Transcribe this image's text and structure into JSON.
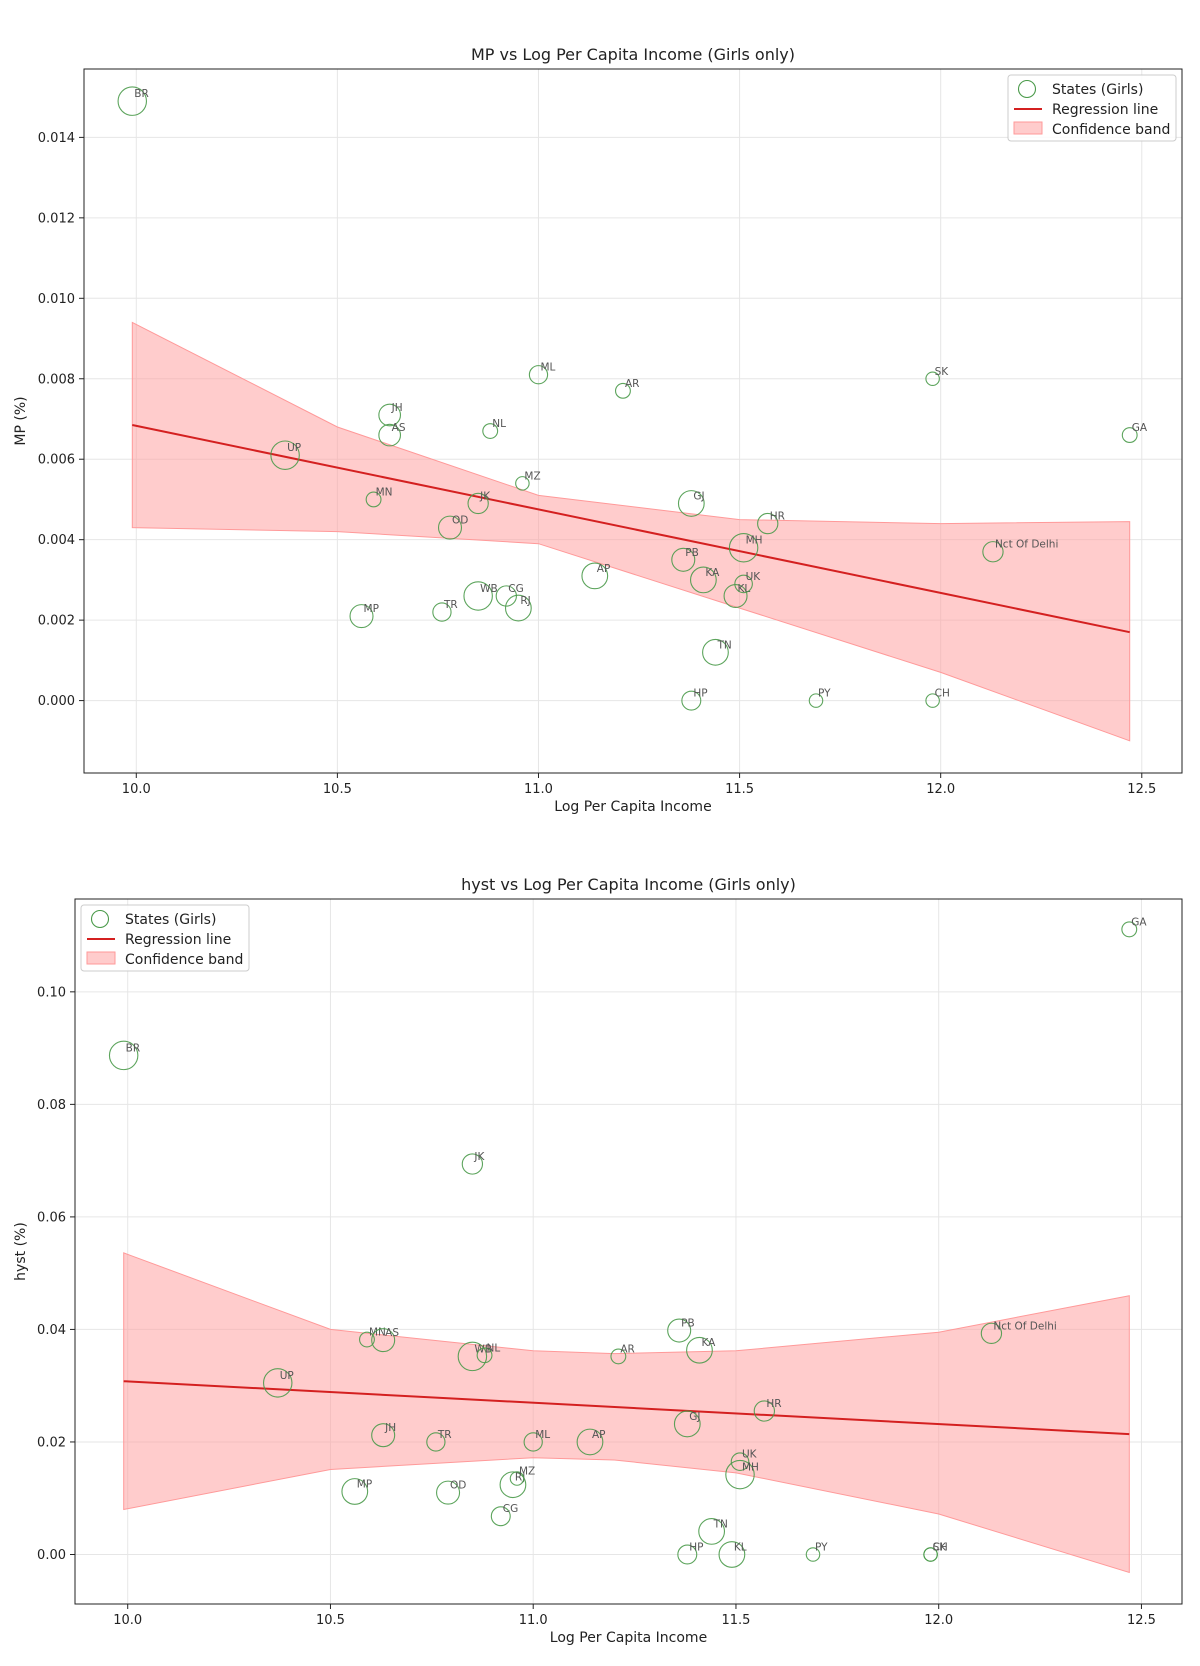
{
  "chart_data": [
    {
      "type": "scatter",
      "title": "MP vs Log Per Capita Income (Girls only)",
      "xlabel": "Log Per Capita Income",
      "ylabel": "MP (%)",
      "xlim": [
        9.87,
        12.6
      ],
      "ylim": [
        -0.0018,
        0.0157
      ],
      "xticks": [
        10.0,
        10.5,
        11.0,
        11.5,
        12.0,
        12.5
      ],
      "xtick_labels": [
        "10.0",
        "10.5",
        "11.0",
        "11.5",
        "12.0",
        "12.5"
      ],
      "yticks": [
        0.0,
        0.002,
        0.004,
        0.006,
        0.008,
        0.01,
        0.012,
        0.014
      ],
      "ytick_labels": [
        "0.000",
        "0.002",
        "0.004",
        "0.006",
        "0.008",
        "0.010",
        "0.012",
        "0.014"
      ],
      "grid": true,
      "legend_position": "top-right",
      "legend": [
        "States (Girls)",
        "Regression line",
        "Confidence band"
      ],
      "colors": {
        "points": "#4a9a4a",
        "line": "#d42020",
        "band": "#ff9999"
      },
      "regression": {
        "x": [
          9.99,
          12.47
        ],
        "y": [
          0.00685,
          0.0017
        ]
      },
      "band": {
        "x": [
          9.99,
          10.5,
          11.0,
          11.5,
          12.0,
          12.47
        ],
        "upper": [
          0.0094,
          0.0068,
          0.0051,
          0.0045,
          0.0044,
          0.00445
        ],
        "lower": [
          0.0043,
          0.0042,
          0.0039,
          0.0023,
          0.0007,
          -0.001
        ]
      },
      "points": [
        {
          "label": "BR",
          "x": 9.99,
          "y": 0.0149,
          "size": 3
        },
        {
          "label": "UP",
          "x": 10.37,
          "y": 0.0061,
          "size": 3
        },
        {
          "label": "MP",
          "x": 10.56,
          "y": 0.0021,
          "size": 2.2
        },
        {
          "label": "MN",
          "x": 10.59,
          "y": 0.005,
          "size": 1
        },
        {
          "label": "JH",
          "x": 10.63,
          "y": 0.0071,
          "size": 2
        },
        {
          "label": "AS",
          "x": 10.63,
          "y": 0.0066,
          "size": 2
        },
        {
          "label": "TR",
          "x": 10.76,
          "y": 0.0022,
          "size": 1.5
        },
        {
          "label": "OD",
          "x": 10.78,
          "y": 0.0043,
          "size": 2.2
        },
        {
          "label": "WB",
          "x": 10.85,
          "y": 0.0026,
          "size": 3
        },
        {
          "label": "JK",
          "x": 10.85,
          "y": 0.0049,
          "size": 1.8
        },
        {
          "label": "NL",
          "x": 10.88,
          "y": 0.0067,
          "size": 1
        },
        {
          "label": "CG",
          "x": 10.92,
          "y": 0.0026,
          "size": 1.8
        },
        {
          "label": "RJ",
          "x": 10.95,
          "y": 0.0023,
          "size": 2.6
        },
        {
          "label": "MZ",
          "x": 10.96,
          "y": 0.0054,
          "size": 0.8
        },
        {
          "label": "ML",
          "x": 11.0,
          "y": 0.0081,
          "size": 1.5
        },
        {
          "label": "AP",
          "x": 11.14,
          "y": 0.0031,
          "size": 2.6
        },
        {
          "label": "AR",
          "x": 11.21,
          "y": 0.0077,
          "size": 1
        },
        {
          "label": "PB",
          "x": 11.36,
          "y": 0.0035,
          "size": 2.2
        },
        {
          "label": "GJ",
          "x": 11.38,
          "y": 0.0049,
          "size": 2.6
        },
        {
          "label": "HP",
          "x": 11.38,
          "y": 0.0,
          "size": 1.6
        },
        {
          "label": "KA",
          "x": 11.41,
          "y": 0.003,
          "size": 2.6
        },
        {
          "label": "TN",
          "x": 11.44,
          "y": 0.0012,
          "size": 2.6
        },
        {
          "label": "KL",
          "x": 11.49,
          "y": 0.0026,
          "size": 2.2
        },
        {
          "label": "MH",
          "x": 11.51,
          "y": 0.0038,
          "size": 3
        },
        {
          "label": "UK",
          "x": 11.51,
          "y": 0.0029,
          "size": 1.4
        },
        {
          "label": "HR",
          "x": 11.57,
          "y": 0.0044,
          "size": 1.8
        },
        {
          "label": "PY",
          "x": 11.69,
          "y": 0.0,
          "size": 0.8
        },
        {
          "label": "SK",
          "x": 11.98,
          "y": 0.008,
          "size": 0.8
        },
        {
          "label": "CH",
          "x": 11.98,
          "y": 0.0,
          "size": 0.8
        },
        {
          "label": "Nct Of Delhi",
          "x": 12.13,
          "y": 0.0037,
          "size": 1.8
        },
        {
          "label": "GA",
          "x": 12.47,
          "y": 0.0066,
          "size": 1
        }
      ]
    },
    {
      "type": "scatter",
      "title": "hyst vs Log Per Capita Income (Girls only)",
      "xlabel": "Log Per Capita Income",
      "ylabel": "hyst (%)",
      "xlim": [
        9.87,
        12.6
      ],
      "ylim": [
        -0.0088,
        0.1165
      ],
      "xticks": [
        10.0,
        10.5,
        11.0,
        11.5,
        12.0,
        12.5
      ],
      "xtick_labels": [
        "10.0",
        "10.5",
        "11.0",
        "11.5",
        "12.0",
        "12.5"
      ],
      "yticks": [
        0.0,
        0.02,
        0.04,
        0.06,
        0.08,
        0.1
      ],
      "ytick_labels": [
        "0.00",
        "0.02",
        "0.04",
        "0.06",
        "0.08",
        "0.10"
      ],
      "grid": true,
      "legend_position": "top-left",
      "legend": [
        "States (Girls)",
        "Regression line",
        "Confidence band"
      ],
      "colors": {
        "points": "#4a9a4a",
        "line": "#d42020",
        "band": "#ff9999"
      },
      "regression": {
        "x": [
          9.99,
          12.47
        ],
        "y": [
          0.0308,
          0.0214
        ]
      },
      "band": {
        "x": [
          9.99,
          10.5,
          11.0,
          11.2,
          11.5,
          12.0,
          12.47
        ],
        "upper": [
          0.0536,
          0.04,
          0.0362,
          0.0357,
          0.0362,
          0.0395,
          0.046
        ],
        "lower": [
          0.008,
          0.0151,
          0.0172,
          0.0168,
          0.0145,
          0.0072,
          -0.0032
        ]
      },
      "points": [
        {
          "label": "BR",
          "x": 9.99,
          "y": 0.0887,
          "size": 3
        },
        {
          "label": "UP",
          "x": 10.37,
          "y": 0.0305,
          "size": 3
        },
        {
          "label": "MP",
          "x": 10.56,
          "y": 0.0112,
          "size": 2.6
        },
        {
          "label": "MN",
          "x": 10.59,
          "y": 0.0382,
          "size": 1
        },
        {
          "label": "AS",
          "x": 10.63,
          "y": 0.0381,
          "size": 2.2
        },
        {
          "label": "JH",
          "x": 10.63,
          "y": 0.0212,
          "size": 2.2
        },
        {
          "label": "TR",
          "x": 10.76,
          "y": 0.02,
          "size": 1.5
        },
        {
          "label": "OD",
          "x": 10.79,
          "y": 0.011,
          "size": 2.2
        },
        {
          "label": "WB",
          "x": 10.85,
          "y": 0.0352,
          "size": 3
        },
        {
          "label": "JK",
          "x": 10.85,
          "y": 0.0694,
          "size": 1.8
        },
        {
          "label": "NL",
          "x": 10.88,
          "y": 0.0354,
          "size": 1
        },
        {
          "label": "CG",
          "x": 10.92,
          "y": 0.0068,
          "size": 1.6
        },
        {
          "label": "RJ",
          "x": 10.95,
          "y": 0.0124,
          "size": 2.6
        },
        {
          "label": "MZ",
          "x": 10.96,
          "y": 0.0135,
          "size": 0.8
        },
        {
          "label": "ML",
          "x": 11.0,
          "y": 0.02,
          "size": 1.5
        },
        {
          "label": "AP",
          "x": 11.14,
          "y": 0.02,
          "size": 2.6
        },
        {
          "label": "AR",
          "x": 11.21,
          "y": 0.0352,
          "size": 1
        },
        {
          "label": "PB",
          "x": 11.36,
          "y": 0.0398,
          "size": 2.2
        },
        {
          "label": "GJ",
          "x": 11.38,
          "y": 0.0232,
          "size": 2.6
        },
        {
          "label": "HP",
          "x": 11.38,
          "y": 0.0,
          "size": 1.6
        },
        {
          "label": "KA",
          "x": 11.41,
          "y": 0.0363,
          "size": 2.6
        },
        {
          "label": "TN",
          "x": 11.44,
          "y": 0.0041,
          "size": 2.6
        },
        {
          "label": "KL",
          "x": 11.49,
          "y": 0.0,
          "size": 2.6
        },
        {
          "label": "UK",
          "x": 11.51,
          "y": 0.0165,
          "size": 1.4
        },
        {
          "label": "MH",
          "x": 11.51,
          "y": 0.0142,
          "size": 3
        },
        {
          "label": "HR",
          "x": 11.57,
          "y": 0.0255,
          "size": 1.8
        },
        {
          "label": "PY",
          "x": 11.69,
          "y": 0.0,
          "size": 0.8
        },
        {
          "label": "SK",
          "x": 11.98,
          "y": 0.0,
          "size": 0.8
        },
        {
          "label": "CH",
          "x": 11.98,
          "y": 0.0,
          "size": 0.8
        },
        {
          "label": "Nct Of Delhi",
          "x": 12.13,
          "y": 0.0393,
          "size": 1.8
        },
        {
          "label": "GA",
          "x": 12.47,
          "y": 0.1111,
          "size": 1
        }
      ]
    }
  ]
}
